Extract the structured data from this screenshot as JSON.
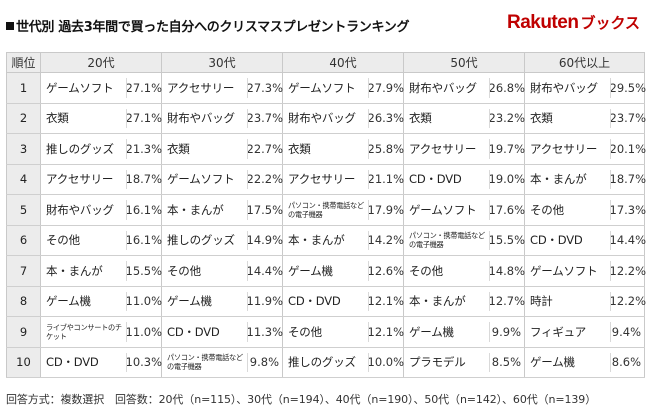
{
  "header": {
    "title": "世代別 過去3年間で買った自分へのクリスマスプレゼントランキング",
    "logo_brand": "Rakuten",
    "logo_sub": "ブックス"
  },
  "table": {
    "rank_header": "順位",
    "columns": [
      "20代",
      "30代",
      "40代",
      "50代",
      "60代以上"
    ],
    "rows": [
      {
        "rank": "1",
        "cells": [
          {
            "item": "ゲームソフト",
            "pct": "27.1%"
          },
          {
            "item": "アクセサリー",
            "pct": "27.3%"
          },
          {
            "item": "ゲームソフト",
            "pct": "27.9%"
          },
          {
            "item": "財布やバッグ",
            "pct": "26.8%"
          },
          {
            "item": "財布やバッグ",
            "pct": "29.5%"
          }
        ]
      },
      {
        "rank": "2",
        "cells": [
          {
            "item": "衣類",
            "pct": "27.1%"
          },
          {
            "item": "財布やバッグ",
            "pct": "23.7%"
          },
          {
            "item": "財布やバッグ",
            "pct": "26.3%"
          },
          {
            "item": "衣類",
            "pct": "23.2%"
          },
          {
            "item": "衣類",
            "pct": "23.7%"
          }
        ]
      },
      {
        "rank": "3",
        "cells": [
          {
            "item": "推しのグッズ",
            "pct": "21.3%"
          },
          {
            "item": "衣類",
            "pct": "22.7%"
          },
          {
            "item": "衣類",
            "pct": "25.8%"
          },
          {
            "item": "アクセサリー",
            "pct": "19.7%"
          },
          {
            "item": "アクセサリー",
            "pct": "20.1%"
          }
        ]
      },
      {
        "rank": "4",
        "cells": [
          {
            "item": "アクセサリー",
            "pct": "18.7%"
          },
          {
            "item": "ゲームソフト",
            "pct": "22.2%"
          },
          {
            "item": "アクセサリー",
            "pct": "21.1%"
          },
          {
            "item": "CD・DVD",
            "pct": "19.0%"
          },
          {
            "item": "本・まんが",
            "pct": "18.7%"
          }
        ]
      },
      {
        "rank": "5",
        "cells": [
          {
            "item": "財布やバッグ",
            "pct": "16.1%"
          },
          {
            "item": "本・まんが",
            "pct": "17.5%"
          },
          {
            "item": "パソコン・携帯電話などの電子機器",
            "pct": "17.9%",
            "small": true
          },
          {
            "item": "ゲームソフト",
            "pct": "17.6%"
          },
          {
            "item": "その他",
            "pct": "17.3%"
          }
        ]
      },
      {
        "rank": "6",
        "cells": [
          {
            "item": "その他",
            "pct": "16.1%"
          },
          {
            "item": "推しのグッズ",
            "pct": "14.9%"
          },
          {
            "item": "本・まんが",
            "pct": "14.2%"
          },
          {
            "item": "パソコン・携帯電話などの電子機器",
            "pct": "15.5%",
            "small": true
          },
          {
            "item": "CD・DVD",
            "pct": "14.4%"
          }
        ]
      },
      {
        "rank": "7",
        "cells": [
          {
            "item": "本・まんが",
            "pct": "15.5%"
          },
          {
            "item": "その他",
            "pct": "14.4%"
          },
          {
            "item": "ゲーム機",
            "pct": "12.6%"
          },
          {
            "item": "その他",
            "pct": "14.8%"
          },
          {
            "item": "ゲームソフト",
            "pct": "12.2%"
          }
        ]
      },
      {
        "rank": "8",
        "cells": [
          {
            "item": "ゲーム機",
            "pct": "11.0%"
          },
          {
            "item": "ゲーム機",
            "pct": "11.9%"
          },
          {
            "item": "CD・DVD",
            "pct": "12.1%"
          },
          {
            "item": "本・まんが",
            "pct": "12.7%"
          },
          {
            "item": "時計",
            "pct": "12.2%"
          }
        ]
      },
      {
        "rank": "9",
        "cells": [
          {
            "item": "ライブやコンサートのチケット",
            "pct": "11.0%",
            "small": true
          },
          {
            "item": "CD・DVD",
            "pct": "11.3%"
          },
          {
            "item": "その他",
            "pct": "12.1%"
          },
          {
            "item": "ゲーム機",
            "pct": "9.9%"
          },
          {
            "item": "フィギュア",
            "pct": "9.4%"
          }
        ]
      },
      {
        "rank": "10",
        "cells": [
          {
            "item": "CD・DVD",
            "pct": "10.3%"
          },
          {
            "item": "パソコン・携帯電話などの電子機器",
            "pct": "9.8%",
            "small": true
          },
          {
            "item": "推しのグッズ",
            "pct": "10.0%"
          },
          {
            "item": "プラモデル",
            "pct": "8.5%"
          },
          {
            "item": "ゲーム機",
            "pct": "8.6%"
          }
        ]
      }
    ]
  },
  "footnote": "回答方式：複数選択　回答数：20代（n=115）、30代（n=194）、40代（n=190）、50代（n=142）、60代（n=139）"
}
